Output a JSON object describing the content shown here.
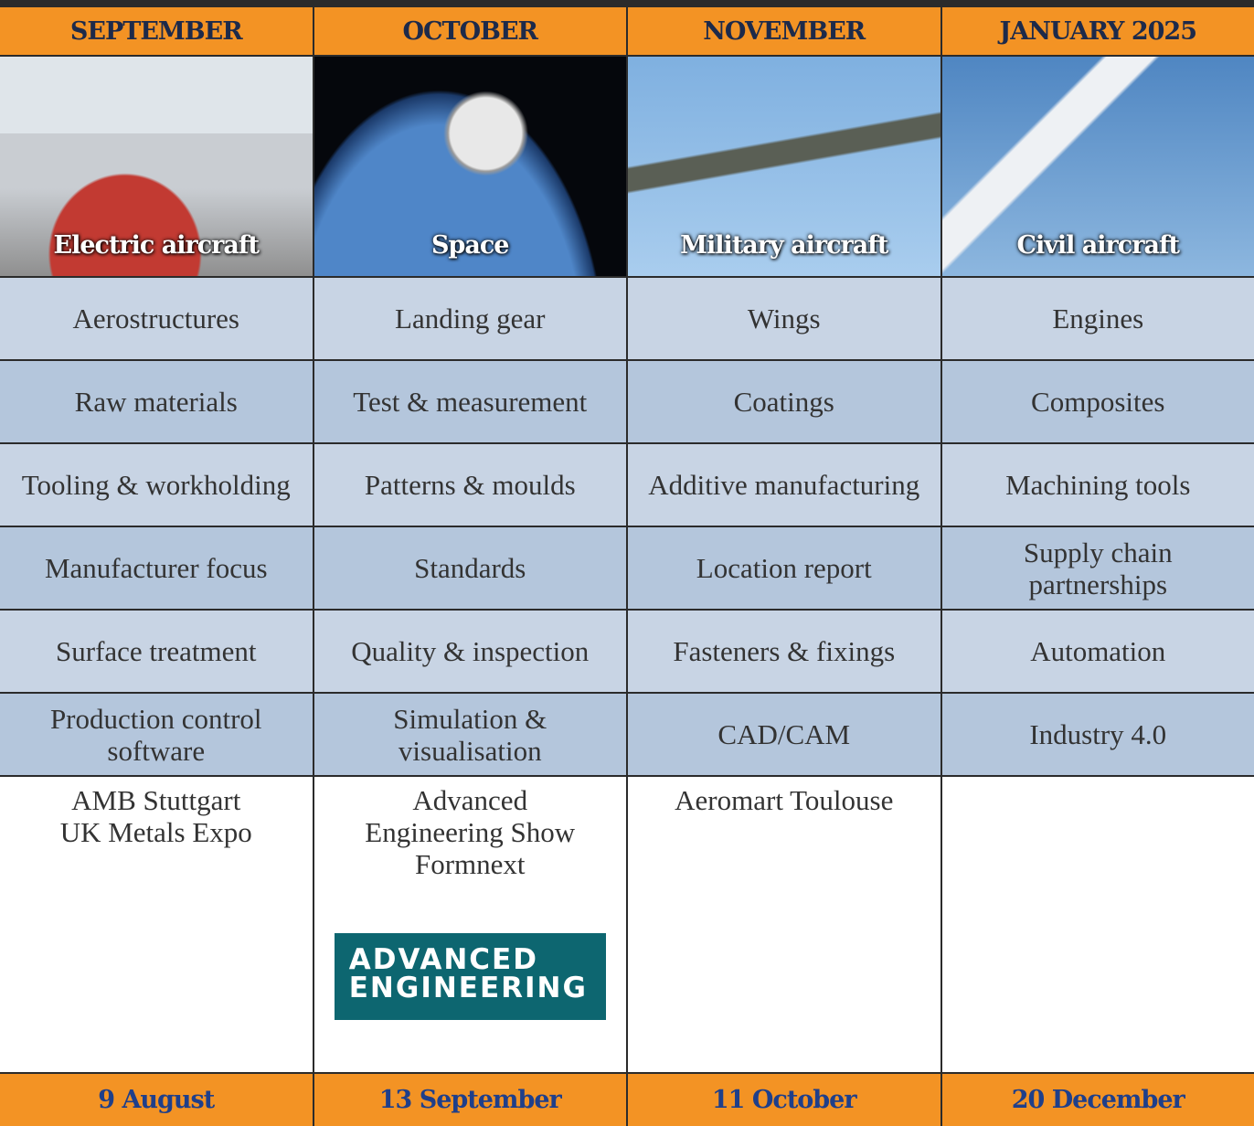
{
  "columns": [
    {
      "month": "SEPTEMBER",
      "feature": "Electric aircraft",
      "topics": [
        "Aerostructures",
        "Raw materials",
        "Tooling & workholding",
        "Manufacturer focus",
        "Surface treatment",
        "Production control software"
      ],
      "events": [
        "AMB Stuttgart",
        "UK Metals Expo"
      ],
      "deadline": "9 August"
    },
    {
      "month": "OCTOBER",
      "feature": "Space",
      "topics": [
        "Landing gear",
        "Test & measurement",
        "Patterns & moulds",
        "Standards",
        "Quality & inspection",
        "Simulation & visualisation"
      ],
      "events": [
        "Advanced Engineering Show",
        "Formnext"
      ],
      "deadline": "13 September"
    },
    {
      "month": "NOVEMBER",
      "feature": "Military aircraft",
      "topics": [
        "Wings",
        "Coatings",
        "Additive manufacturing",
        "Location report",
        "Fasteners & fixings",
        "CAD/CAM"
      ],
      "events": [
        "Aeromart Toulouse"
      ],
      "deadline": "11 October"
    },
    {
      "month": "JANUARY 2025",
      "feature": "Civil aircraft",
      "topics": [
        "Engines",
        "Composites",
        "Machining tools",
        "Supply chain partnerships",
        "Automation",
        "Industry 4.0"
      ],
      "events": [],
      "deadline": "20 December"
    }
  ],
  "logo": {
    "line1": "ADVANCED",
    "line2": "ENGINEERING"
  }
}
